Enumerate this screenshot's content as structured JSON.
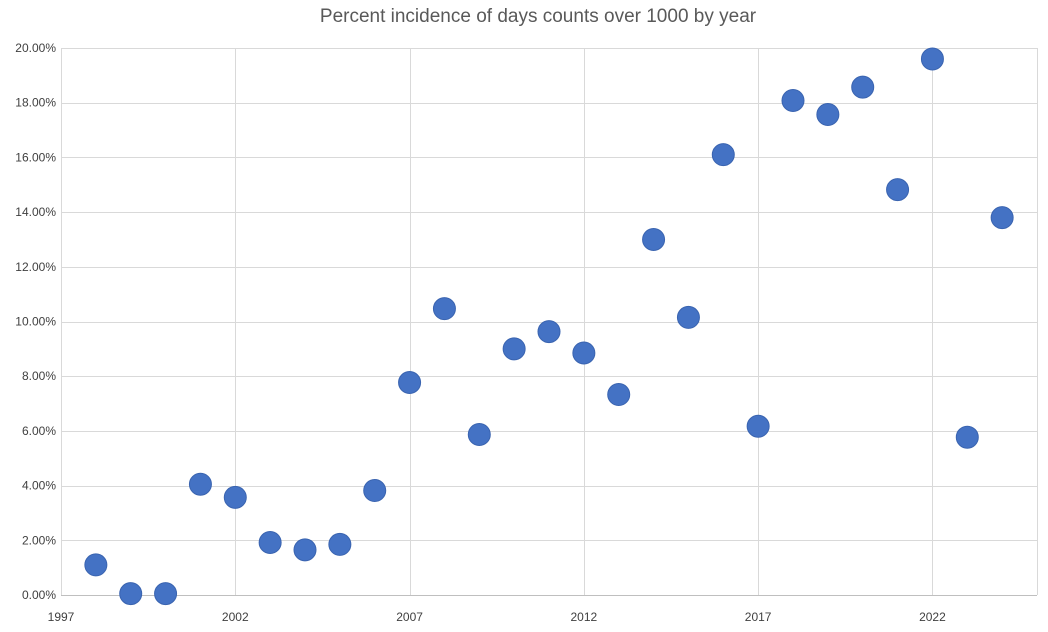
{
  "chart_data": {
    "type": "scatter",
    "title": "Percent incidence of days counts over 1000 by year",
    "xlabel": "",
    "ylabel": "",
    "xlim": [
      1997,
      2025
    ],
    "ylim": [
      0,
      20
    ],
    "x_ticks": [
      1997,
      2002,
      2007,
      2012,
      2017,
      2022
    ],
    "x_tick_labels": [
      "1997",
      "2002",
      "2007",
      "2012",
      "2017",
      "2022"
    ],
    "y_ticks": [
      0,
      2,
      4,
      6,
      8,
      10,
      12,
      14,
      16,
      18,
      20
    ],
    "y_tick_labels": [
      "0.00%",
      "2.00%",
      "4.00%",
      "6.00%",
      "8.00%",
      "10.00%",
      "12.00%",
      "14.00%",
      "16.00%",
      "18.00%",
      "20.00%"
    ],
    "grid": true,
    "legend": "none",
    "marker_color": "#4472C4",
    "series": [
      {
        "x": [
          1998,
          1999,
          2000,
          2001,
          2002,
          2003,
          2004,
          2005,
          2006,
          2007,
          2008,
          2009,
          2010,
          2011,
          2012,
          2013,
          2014,
          2015,
          2016,
          2017,
          2018,
          2019,
          2020,
          2021,
          2022,
          2023,
          2024
        ],
        "y": [
          1.1,
          0.05,
          0.05,
          4.05,
          3.57,
          1.92,
          1.65,
          1.85,
          3.82,
          7.77,
          10.47,
          5.87,
          9.0,
          9.63,
          8.85,
          7.33,
          13.0,
          10.15,
          16.1,
          6.17,
          18.08,
          17.57,
          18.57,
          14.82,
          19.6,
          5.77,
          13.8
        ]
      }
    ]
  }
}
